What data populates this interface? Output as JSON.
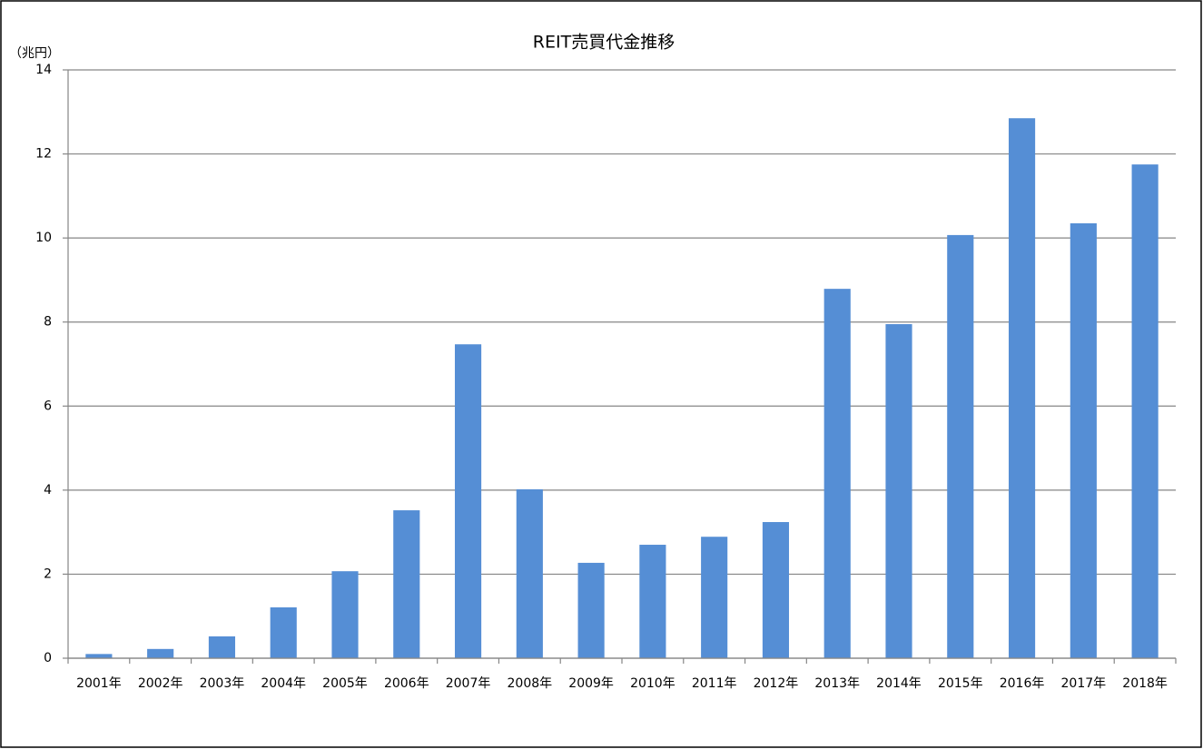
{
  "chart_data": {
    "type": "bar",
    "title": "REIT売買代金推移",
    "ylabel": "（兆円）",
    "categories": [
      "2001年",
      "2002年",
      "2003年",
      "2004年",
      "2005年",
      "2006年",
      "2007年",
      "2008年",
      "2009年",
      "2010年",
      "2011年",
      "2012年",
      "2013年",
      "2014年",
      "2015年",
      "2016年",
      "2017年",
      "2018年"
    ],
    "values": [
      0.1,
      0.22,
      0.52,
      1.21,
      2.07,
      3.52,
      7.47,
      4.02,
      2.27,
      2.7,
      2.89,
      3.24,
      8.79,
      7.95,
      10.07,
      12.85,
      10.35,
      11.75
    ],
    "color": "#558ed5",
    "ylim": [
      0,
      14
    ],
    "yticks": [
      0,
      2,
      4,
      6,
      8,
      10,
      12,
      14
    ],
    "grid": true
  }
}
